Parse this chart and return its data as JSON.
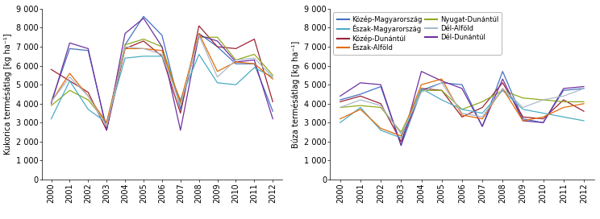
{
  "years": [
    2000,
    2001,
    2002,
    2003,
    2004,
    2005,
    2006,
    2007,
    2008,
    2009,
    2010,
    2011,
    2012
  ],
  "regions": [
    "Közép-Magyarország",
    "Közép-Dunántúl",
    "Nyugat-Dunántúl",
    "Dél-Dunántúl",
    "Észak-Magyarország",
    "Észak-Alföld",
    "Dél-Alföld"
  ],
  "colors": [
    "#4472c4",
    "#9b2335",
    "#8faa1c",
    "#7030a0",
    "#4bacc6",
    "#e36c09",
    "#adb9ca"
  ],
  "kukorica": [
    [
      4100,
      6900,
      6800,
      2700,
      7100,
      8600,
      7600,
      3700,
      7700,
      7000,
      6100,
      6100,
      3600
    ],
    [
      5800,
      5200,
      4600,
      2600,
      6900,
      7300,
      6500,
      3500,
      8100,
      7000,
      6900,
      7400,
      4100
    ],
    [
      3900,
      4700,
      4200,
      3000,
      7100,
      7400,
      7000,
      4000,
      7500,
      7500,
      6300,
      6600,
      5500
    ],
    [
      4000,
      7200,
      6900,
      2600,
      7700,
      8500,
      7000,
      2600,
      7600,
      7300,
      6200,
      6300,
      3200
    ],
    [
      3200,
      5200,
      3700,
      3000,
      6400,
      6500,
      6500,
      4200,
      6600,
      5100,
      5000,
      5900,
      5400
    ],
    [
      4100,
      5600,
      4400,
      3000,
      6900,
      6900,
      6800,
      4100,
      7700,
      5700,
      6200,
      6100,
      5300
    ],
    [
      4100,
      5400,
      4400,
      2800,
      7000,
      6900,
      6600,
      3900,
      7600,
      5400,
      6300,
      6400,
      5400
    ]
  ],
  "buza": [
    [
      4200,
      4500,
      4900,
      1800,
      4700,
      5100,
      5000,
      2800,
      5700,
      3200,
      3000,
      4700,
      4800
    ],
    [
      4100,
      4400,
      4000,
      2000,
      4800,
      4700,
      3300,
      3800,
      5100,
      3300,
      3200,
      4200,
      3600
    ],
    [
      3800,
      3900,
      3800,
      2500,
      4700,
      4700,
      3700,
      4100,
      4700,
      4300,
      4200,
      4100,
      4100
    ],
    [
      4400,
      5100,
      5000,
      1800,
      5700,
      5200,
      4800,
      2800,
      5300,
      3100,
      3000,
      4800,
      4900
    ],
    [
      3000,
      3800,
      2600,
      2200,
      4800,
      4200,
      3700,
      3500,
      4700,
      3700,
      3500,
      3300,
      3100
    ],
    [
      3200,
      3700,
      2700,
      2300,
      5000,
      5300,
      3400,
      3200,
      4800,
      3100,
      3300,
      3800,
      4000
    ],
    [
      3800,
      4200,
      3900,
      2400,
      4600,
      5100,
      3500,
      3300,
      4800,
      3800,
      4200,
      4400,
      4800
    ]
  ],
  "ylabel_left": "Kukorica termésátlag [kg ha⁻¹]",
  "ylabel_right": "Búza termésátlag [kg ha⁻¹]",
  "ylim": [
    0,
    9000
  ],
  "yticks": [
    0,
    1000,
    2000,
    3000,
    4000,
    5000,
    6000,
    7000,
    8000,
    9000
  ],
  "ytick_labels": [
    "0",
    "1 000",
    "2 000",
    "3 000",
    "4 000",
    "5 000",
    "6 000",
    "7 000",
    "8 000",
    "9 000"
  ]
}
